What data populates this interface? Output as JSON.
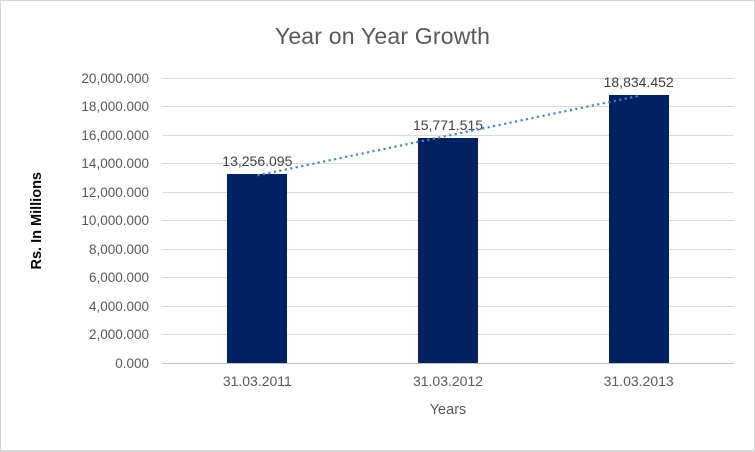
{
  "chart_data": {
    "type": "bar",
    "title": "Year on Year Growth",
    "categories": [
      "31.03.2011",
      "31.03.2012",
      "31.03.2013"
    ],
    "values": [
      13256.095,
      15771.515,
      18834.452
    ],
    "value_labels": [
      "13,256.095",
      "15,771.515",
      "18,834.452"
    ],
    "xlabel": "Years",
    "ylabel": "Rs. In Millions",
    "ylim": [
      0,
      20000
    ],
    "y_tick_step": 2000,
    "y_tick_labels": [
      "0.000",
      "2,000.000",
      "4,000.000",
      "6,000.000",
      "8,000.000",
      "10,000.000",
      "12,000.000",
      "14,000.000",
      "16,000.000",
      "18,000.000",
      "20,000.000"
    ],
    "grid": true,
    "legend": "none",
    "trendline": {
      "type": "linear",
      "style": "dotted"
    },
    "colors": {
      "bar": "#032161",
      "trendline": "#4d82c4",
      "gridline": "#d9d9d9",
      "axis_line": "#bfbfbf",
      "title": "#595959",
      "tick_label": "#595959",
      "data_label": "#404040",
      "y_axis_title": "#050505"
    }
  }
}
